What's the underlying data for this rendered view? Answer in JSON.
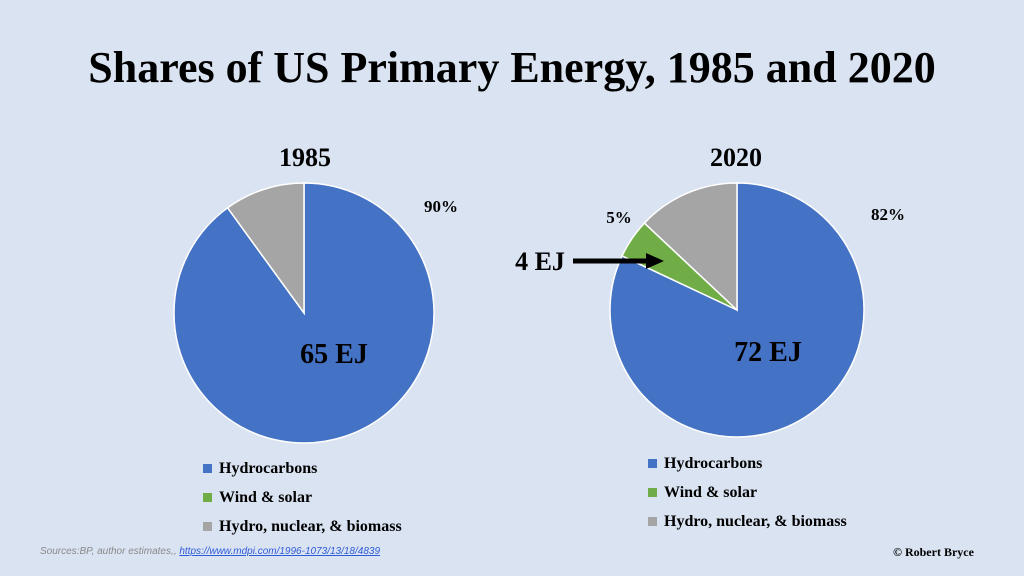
{
  "title": "Shares of US Primary Energy, 1985 and 2020",
  "colors": {
    "hydrocarbons": "#4472c4",
    "wind_solar": "#70ad47",
    "hydro_nuclear_biomass": "#a5a5a5",
    "background": "#dae3f2"
  },
  "chart_data": [
    {
      "type": "pie",
      "title": "1985",
      "categories": [
        "Hydrocarbons",
        "Wind & solar",
        "Hydro, nuclear, & biomass"
      ],
      "values": [
        90,
        0,
        10
      ],
      "labels": {
        "share": "90%",
        "total": "65 EJ"
      },
      "legend": "bottom"
    },
    {
      "type": "pie",
      "title": "2020",
      "categories": [
        "Hydrocarbons",
        "Wind & solar",
        "Hydro, nuclear, & biomass"
      ],
      "values": [
        82,
        5,
        13
      ],
      "labels": {
        "share": "82%",
        "wind_share": "5%",
        "total": "72 EJ",
        "wind_callout": "4 EJ"
      },
      "legend": "bottom"
    }
  ],
  "legend": [
    "Hydrocarbons",
    "Wind & solar",
    "Hydro, nuclear, & biomass"
  ],
  "source": {
    "text": "Sources:BP, author estimates,, ",
    "link": "https://www.mdpi.com/1996-1073/13/18/4839"
  },
  "credit": "© Robert Bryce"
}
